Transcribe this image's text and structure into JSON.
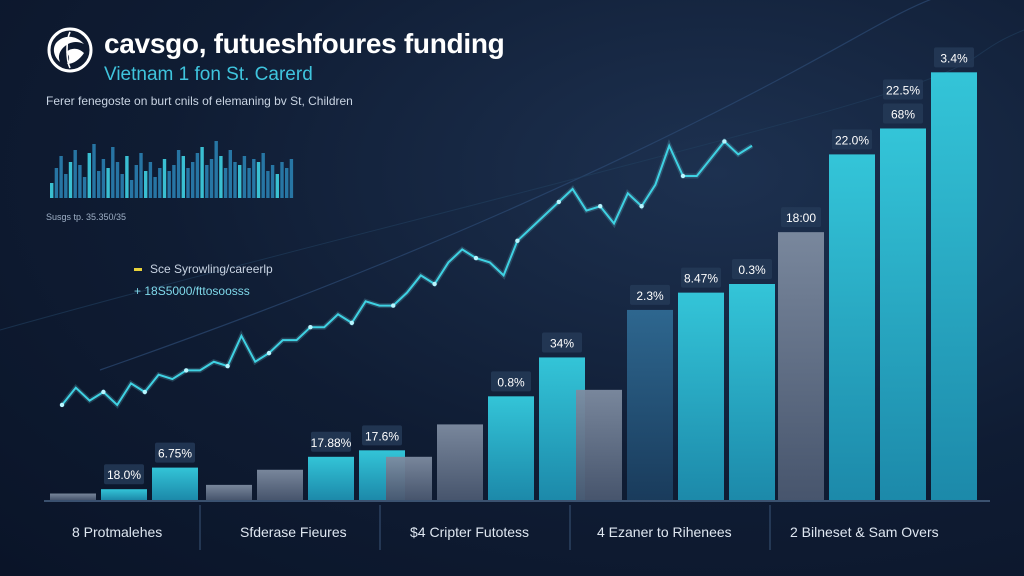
{
  "header": {
    "title": "cavsgo, futueshfoures funding",
    "subtitle": "Vietnam 1 fon St. Carerd",
    "caption": "Ferer fenegoste on burt cnils of elemaning bv St, Children",
    "mini_caption": "Susgs tp. 35.350/35"
  },
  "legend": {
    "item1_label": "Sce Syrowling/careerlp",
    "item2_value": "+ 18S5000/fttosoosss"
  },
  "colors": {
    "line": "#3fd2e3",
    "bar_teal": "#22b9d4",
    "bar_gray": "#6b7a90",
    "bar_blue": "#2c5f86",
    "label_box": "#243a57"
  },
  "chart_data": {
    "type": "bar",
    "title": "cavsgo, futueshfoures funding",
    "xlabel": "",
    "ylabel": "",
    "ylim": [
      0,
      100
    ],
    "groups": [
      {
        "label": "8 Protmalehes"
      },
      {
        "label": "Sfderase Fieures"
      },
      {
        "label": "$4 Cripter Futotess"
      },
      {
        "label": "4 Ezaner to Rihenees"
      },
      {
        "label": "2 Bilneset & Sam Overs"
      }
    ],
    "bars": [
      {
        "group": 0,
        "value": 1.5,
        "style": "gray",
        "label": ""
      },
      {
        "group": 0,
        "value": 2.5,
        "style": "teal",
        "label": "18.0%"
      },
      {
        "group": 0,
        "value": 7.5,
        "style": "teal",
        "label": "6.75%"
      },
      {
        "group": 1,
        "value": 3.5,
        "style": "gray",
        "label": ""
      },
      {
        "group": 1,
        "value": 7,
        "style": "gray",
        "label": ""
      },
      {
        "group": 1,
        "value": 10,
        "style": "teal",
        "label": "17.88%"
      },
      {
        "group": 1,
        "value": 11.5,
        "style": "teal",
        "label": "17.6%"
      },
      {
        "group": 2,
        "value": 10,
        "style": "gray",
        "label": ""
      },
      {
        "group": 2,
        "value": 17.5,
        "style": "gray",
        "label": ""
      },
      {
        "group": 2,
        "value": 24,
        "style": "teal",
        "label": "0.8%"
      },
      {
        "group": 2,
        "value": 33,
        "style": "teal",
        "label": "34%"
      },
      {
        "group": 3,
        "value": 25.5,
        "style": "gray",
        "label": ""
      },
      {
        "group": 3,
        "value": 44,
        "style": "blue",
        "label": "2.3%"
      },
      {
        "group": 3,
        "value": 48,
        "style": "teal",
        "label": "8.47%"
      },
      {
        "group": 3,
        "value": 50,
        "style": "teal",
        "label": "0.3%"
      },
      {
        "group": 4,
        "value": 62,
        "style": "gray",
        "label": "18:00"
      },
      {
        "group": 4,
        "value": 80,
        "style": "teal",
        "label": "22.0%"
      },
      {
        "group": 4,
        "value": 86,
        "style": "teal",
        "label": "22.5% / 68%"
      },
      {
        "group": 4,
        "value": 99,
        "style": "teal",
        "label": "3.4%"
      }
    ],
    "line": {
      "x": [
        0,
        1,
        2,
        3,
        4,
        5,
        6,
        7,
        8,
        9,
        10,
        11,
        12,
        13,
        14,
        15,
        16,
        17,
        18,
        19,
        20,
        21,
        22,
        23,
        24,
        25,
        26,
        27,
        28,
        29,
        30,
        31,
        32,
        33,
        34,
        35,
        36,
        37,
        38,
        39,
        40,
        41,
        42,
        43,
        44,
        45,
        46,
        47,
        48,
        49,
        50
      ],
      "y": [
        22,
        26,
        23,
        25,
        22,
        27,
        25,
        29,
        28,
        30,
        30,
        32,
        31,
        38,
        32,
        34,
        37,
        37,
        40,
        40,
        43,
        41,
        46,
        45,
        45,
        48,
        52,
        50,
        55,
        58,
        56,
        55,
        52,
        60,
        63,
        66,
        69,
        72,
        67,
        68,
        64,
        71,
        68,
        73,
        82,
        75,
        75,
        79,
        83,
        80,
        82
      ]
    },
    "mini_bars": [
      5,
      10,
      14,
      8,
      12,
      16,
      11,
      7,
      15,
      18,
      9,
      13,
      10,
      17,
      12,
      8,
      14,
      6,
      11,
      15,
      9,
      12,
      7,
      10,
      13,
      9,
      11,
      16,
      14,
      10,
      12,
      15,
      17,
      11,
      13,
      19,
      14,
      10,
      16,
      12,
      11,
      14,
      10,
      13,
      12,
      15,
      9,
      11,
      8,
      12,
      10,
      13
    ]
  }
}
